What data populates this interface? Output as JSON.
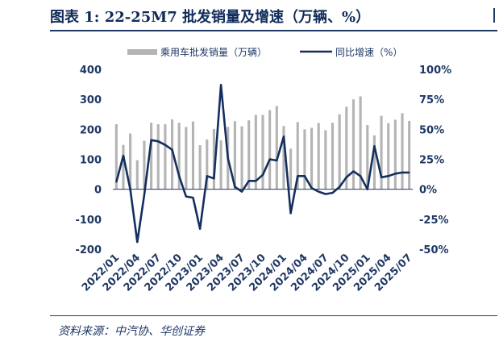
{
  "header": {
    "title": "图表 1:  22-25M7 批发销量及增速（万辆、%）"
  },
  "footer": {
    "source": "资料来源：中汽协、华创证券"
  },
  "colors": {
    "bars": "#b4b4b4",
    "line": "#142f5e",
    "axis_text": "#1f3864",
    "rule": "#1f3864"
  },
  "chart_data": {
    "type": "bar",
    "categories": [
      "2022/01",
      "2022/02",
      "2022/03",
      "2022/04",
      "2022/05",
      "2022/06",
      "2022/07",
      "2022/08",
      "2022/09",
      "2022/10",
      "2022/11",
      "2022/12",
      "2023/01",
      "2023/02",
      "2023/03",
      "2023/04",
      "2023/05",
      "2023/06",
      "2023/07",
      "2023/08",
      "2023/09",
      "2023/10",
      "2023/11",
      "2023/12",
      "2024/01",
      "2024/02",
      "2024/03",
      "2024/04",
      "2024/05",
      "2024/06",
      "2024/07",
      "2024/08",
      "2024/09",
      "2024/10",
      "2024/11",
      "2024/12",
      "2025/01",
      "2025/02",
      "2025/03",
      "2025/04",
      "2025/05",
      "2025/06",
      "2025/07"
    ],
    "x_tick_labels": [
      "2022/01",
      "2022/04",
      "2022/07",
      "2022/10",
      "2023/01",
      "2023/04",
      "2023/07",
      "2023/10",
      "2024/01",
      "2024/04",
      "2024/07",
      "2024/10",
      "2025/01",
      "2025/04",
      "2025/07"
    ],
    "series": [
      {
        "name": "乘用车批发销量（万辆）",
        "type": "bar",
        "axis": "left",
        "values": [
          217,
          148,
          186,
          97,
          162,
          222,
          217,
          217,
          233,
          222,
          208,
          226,
          147,
          166,
          201,
          163,
          208,
          227,
          210,
          230,
          248,
          248,
          264,
          278,
          211,
          135,
          224,
          200,
          205,
          221,
          197,
          222,
          250,
          275,
          300,
          310,
          214,
          180,
          245,
          220,
          232,
          254,
          228
        ]
      },
      {
        "name": "同比增速（%）",
        "type": "line",
        "axis": "right",
        "values": [
          6,
          28,
          0,
          -44,
          -5,
          41,
          40,
          37,
          33,
          11,
          -6,
          -7,
          -33,
          11,
          9,
          87,
          26,
          2,
          -2,
          7,
          7,
          12,
          25,
          24,
          44,
          -20,
          11,
          11,
          1,
          -2,
          -4,
          -3,
          2,
          10,
          15,
          11,
          0,
          36,
          10,
          11,
          13,
          14,
          14
        ]
      }
    ],
    "y_left": {
      "ylim": [
        -200,
        400
      ],
      "ticks": [
        -200,
        -100,
        0,
        100,
        200,
        300,
        400
      ]
    },
    "y_right": {
      "ylim": [
        -50,
        100
      ],
      "ticks": [
        "-50%",
        "-25%",
        "0%",
        "25%",
        "50%",
        "75%",
        "100%"
      ]
    },
    "legend": {
      "position": "top-center",
      "items": [
        "乘用车批发销量（万辆）",
        "同比增速（%）"
      ]
    },
    "grid": false
  }
}
